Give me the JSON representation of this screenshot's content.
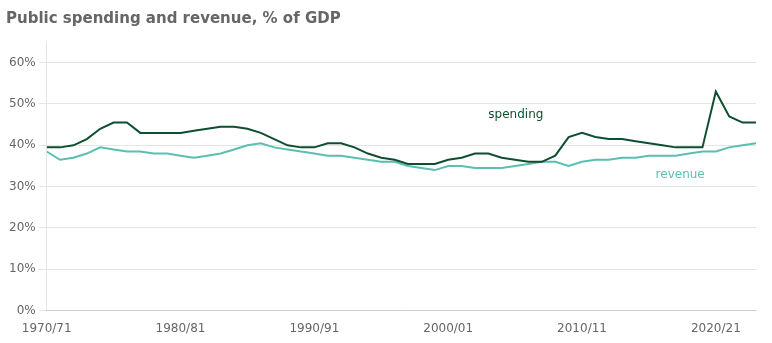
{
  "chart_data": {
    "type": "line",
    "title": "Public spending and revenue, % of GDP",
    "x": [
      1970,
      1971,
      1972,
      1973,
      1974,
      1975,
      1976,
      1977,
      1978,
      1979,
      1980,
      1981,
      1982,
      1983,
      1984,
      1985,
      1986,
      1987,
      1988,
      1989,
      1990,
      1991,
      1992,
      1993,
      1994,
      1995,
      1996,
      1997,
      1998,
      1999,
      2000,
      2001,
      2002,
      2003,
      2004,
      2005,
      2006,
      2007,
      2008,
      2009,
      2010,
      2011,
      2012,
      2013,
      2014,
      2015,
      2016,
      2017,
      2018,
      2019,
      2020,
      2021,
      2022,
      2023
    ],
    "series": [
      {
        "name": "spending",
        "color": "#0d4f2f",
        "values": [
          0.395,
          0.395,
          0.4,
          0.415,
          0.44,
          0.455,
          0.455,
          0.43,
          0.43,
          0.43,
          0.43,
          0.435,
          0.44,
          0.445,
          0.445,
          0.44,
          0.43,
          0.415,
          0.4,
          0.395,
          0.395,
          0.405,
          0.405,
          0.395,
          0.38,
          0.37,
          0.365,
          0.355,
          0.355,
          0.355,
          0.365,
          0.37,
          0.38,
          0.38,
          0.37,
          0.365,
          0.36,
          0.36,
          0.375,
          0.42,
          0.43,
          0.42,
          0.415,
          0.415,
          0.41,
          0.405,
          0.4,
          0.395,
          0.395,
          0.395,
          0.53,
          0.47,
          0.455,
          0.455
        ]
      },
      {
        "name": "revenue",
        "color": "#5bbfb0",
        "values": [
          0.385,
          0.365,
          0.37,
          0.38,
          0.395,
          0.39,
          0.385,
          0.385,
          0.38,
          0.38,
          0.375,
          0.37,
          0.375,
          0.38,
          0.39,
          0.4,
          0.405,
          0.395,
          0.39,
          0.385,
          0.38,
          0.375,
          0.375,
          0.37,
          0.365,
          0.36,
          0.36,
          0.35,
          0.345,
          0.34,
          0.35,
          0.35,
          0.345,
          0.345,
          0.345,
          0.35,
          0.355,
          0.36,
          0.36,
          0.35,
          0.36,
          0.365,
          0.365,
          0.37,
          0.37,
          0.375,
          0.375,
          0.375,
          0.38,
          0.385,
          0.385,
          0.395,
          0.4,
          0.405
        ]
      }
    ],
    "xlim": [
      1970,
      2023
    ],
    "xticks": [
      {
        "value": 1970,
        "label": "1970/71"
      },
      {
        "value": 1980,
        "label": "1980/81"
      },
      {
        "value": 1990,
        "label": "1990/91"
      },
      {
        "value": 2000,
        "label": "2000/01"
      },
      {
        "value": 2010,
        "label": "2010/11"
      },
      {
        "value": 2020,
        "label": "2020/21"
      }
    ],
    "ylim": [
      0,
      0.65
    ],
    "yticks": [
      {
        "value": 0.0,
        "label": "0%"
      },
      {
        "value": 0.1,
        "label": "10%"
      },
      {
        "value": 0.2,
        "label": "20%"
      },
      {
        "value": 0.3,
        "label": "30%"
      },
      {
        "value": 0.4,
        "label": "40%"
      },
      {
        "value": 0.5,
        "label": "50%"
      },
      {
        "value": 0.6,
        "label": "60%"
      }
    ],
    "grid": "y",
    "legend": false,
    "annotations": [
      {
        "text": "spending",
        "x": 2003,
        "y": 0.455,
        "color": "#0d4f2f"
      },
      {
        "text": "revenue",
        "x": 2015.5,
        "y": 0.348,
        "color": "#5bbfb0"
      }
    ]
  }
}
